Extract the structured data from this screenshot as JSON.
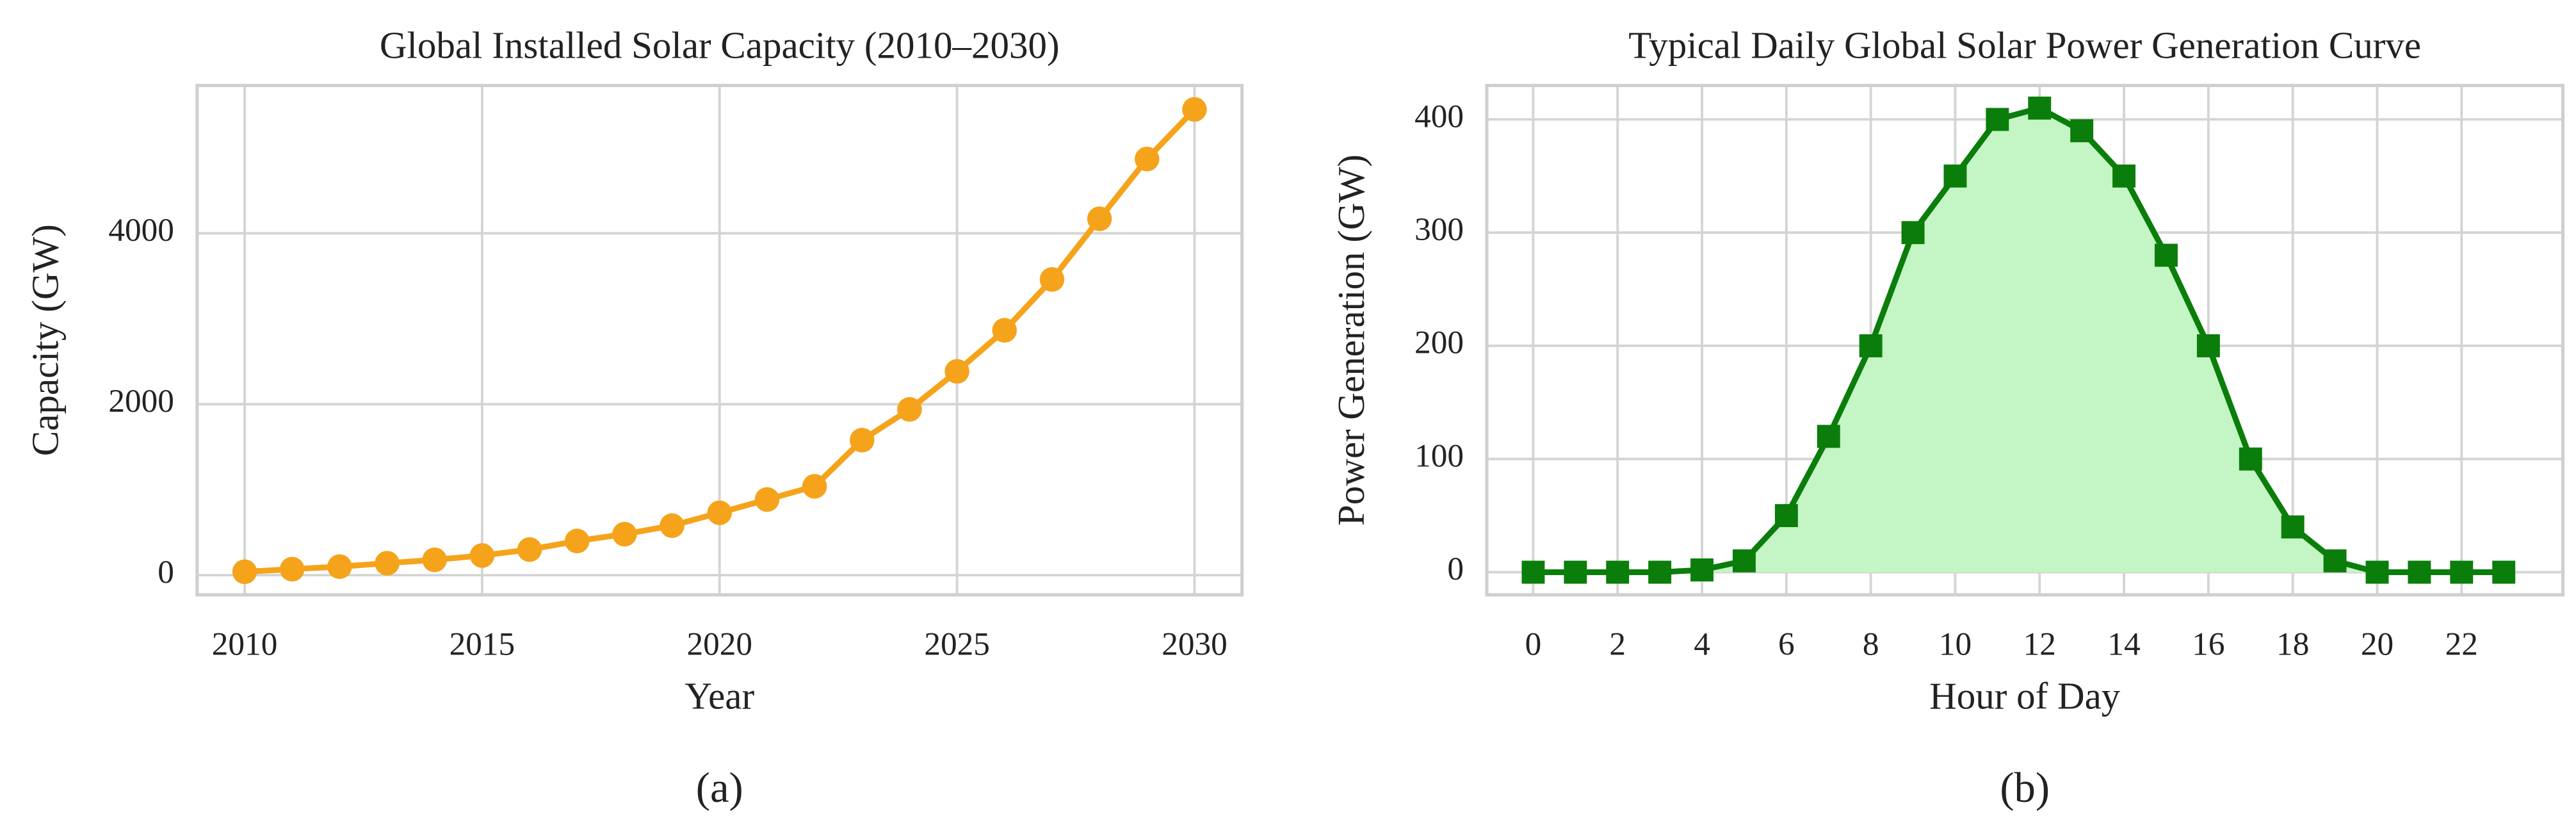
{
  "chart_data": [
    {
      "type": "line",
      "title": "Global Installed Solar Capacity (2010–2030)",
      "x_label": "Year",
      "y_label": "Capacity (GW)",
      "caption": "(a)",
      "x": [
        2010,
        2011,
        2012,
        2013,
        2014,
        2015,
        2016,
        2017,
        2018,
        2019,
        2020,
        2021,
        2022,
        2023,
        2024,
        2025,
        2026,
        2027,
        2028,
        2029,
        2030
      ],
      "values": [
        40,
        70,
        100,
        140,
        180,
        230,
        300,
        400,
        480,
        580,
        730,
        885,
        1040,
        1580,
        1940,
        2385,
        2865,
        3460,
        4170,
        4870,
        5450
      ],
      "color": "#f5a31a",
      "marker": "circle",
      "fill": false,
      "xlim": [
        2009,
        2031
      ],
      "xticks": [
        2010,
        2015,
        2020,
        2025,
        2030
      ],
      "ylim": [
        -230,
        5730
      ],
      "yticks": [
        0,
        2000,
        4000
      ],
      "grid": true
    },
    {
      "type": "line",
      "title": "Typical Daily Global Solar Power Generation Curve",
      "x_label": "Hour of Day",
      "y_label": "Power Generation (GW)",
      "caption": "(b)",
      "x": [
        0,
        1,
        2,
        3,
        4,
        5,
        6,
        7,
        8,
        9,
        10,
        11,
        12,
        13,
        14,
        15,
        16,
        17,
        18,
        19,
        20,
        21,
        22,
        23
      ],
      "values": [
        0,
        0,
        0,
        0,
        2,
        10,
        50,
        120,
        200,
        300,
        350,
        400,
        410,
        390,
        350,
        280,
        200,
        100,
        40,
        10,
        0,
        0,
        0,
        0
      ],
      "color": "#0a7d0a",
      "marker": "square",
      "fill": true,
      "fill_color": "#c4f5c4",
      "xlim": [
        -1.1,
        24.4
      ],
      "xticks": [
        0,
        2,
        4,
        6,
        8,
        10,
        12,
        14,
        16,
        18,
        20,
        22
      ],
      "ylim": [
        -20,
        430
      ],
      "yticks": [
        0,
        100,
        200,
        300,
        400
      ],
      "grid": true
    }
  ]
}
